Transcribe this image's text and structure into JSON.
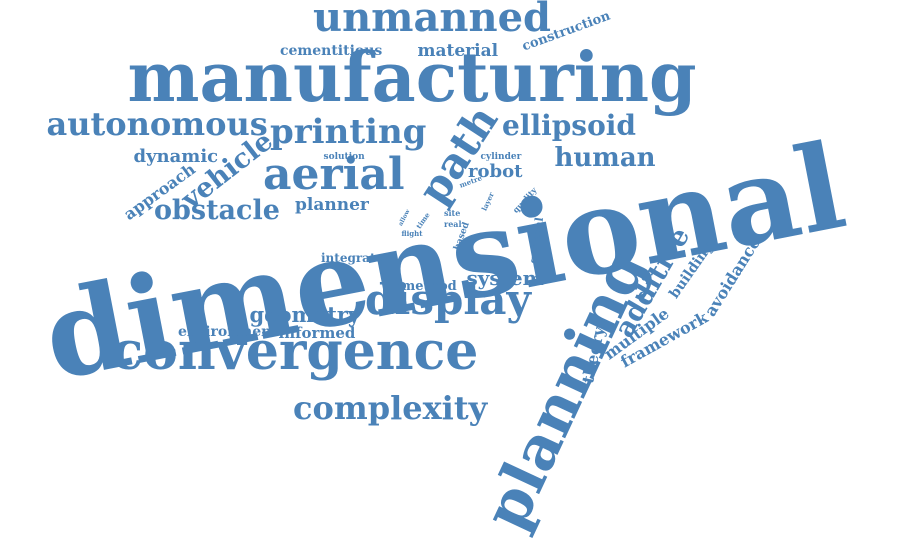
{
  "color": "#4a82b8",
  "words": [
    {
      "text": "dimensional",
      "name": "word-dimensional"
    },
    {
      "text": "manufacturing",
      "name": "word-manufacturing"
    },
    {
      "text": "planning",
      "name": "word-planning"
    },
    {
      "text": "convergence",
      "name": "word-convergence"
    },
    {
      "text": "unmanned",
      "name": "word-unmanned"
    },
    {
      "text": "display",
      "name": "word-display"
    },
    {
      "text": "aerial",
      "name": "word-aerial"
    },
    {
      "text": "complexity",
      "name": "word-complexity"
    },
    {
      "text": "path",
      "name": "word-path"
    },
    {
      "text": "printing",
      "name": "word-printing"
    },
    {
      "text": "autonomous",
      "name": "word-autonomous"
    },
    {
      "text": "ellipsoid",
      "name": "word-ellipsoid"
    },
    {
      "text": "human",
      "name": "word-human"
    },
    {
      "text": "obstacle",
      "name": "word-obstacle"
    },
    {
      "text": "vehicle",
      "name": "word-vehicle"
    },
    {
      "text": "additive",
      "name": "word-additive"
    },
    {
      "text": "geometry",
      "name": "word-geometry"
    },
    {
      "text": "system",
      "name": "word-system"
    },
    {
      "text": "dynamic",
      "name": "word-dynamic"
    },
    {
      "text": "approach",
      "name": "word-approach"
    },
    {
      "text": "robot",
      "name": "word-robot"
    },
    {
      "text": "planner",
      "name": "word-planner"
    },
    {
      "text": "material",
      "name": "word-material"
    },
    {
      "text": "cementitious",
      "name": "word-cementitious"
    },
    {
      "text": "construction",
      "name": "word-construction"
    },
    {
      "text": "framework",
      "name": "word-framework"
    },
    {
      "text": "multiple",
      "name": "word-multiple"
    },
    {
      "text": "theory",
      "name": "word-theory"
    },
    {
      "text": "avoidance",
      "name": "word-avoidance"
    },
    {
      "text": "building",
      "name": "word-building"
    },
    {
      "text": "environment",
      "name": "word-environment"
    },
    {
      "text": "informed",
      "name": "word-informed"
    },
    {
      "text": "method",
      "name": "word-method"
    },
    {
      "text": "integrate",
      "name": "word-integrate"
    },
    {
      "text": "general",
      "name": "word-general"
    },
    {
      "text": "based",
      "name": "word-based"
    },
    {
      "text": "solution",
      "name": "word-solution"
    },
    {
      "text": "cylinder",
      "name": "word-cylinder"
    },
    {
      "text": "quality",
      "name": "word-quality"
    },
    {
      "text": "metre",
      "name": "word-metre"
    },
    {
      "text": "layer",
      "name": "word-layer"
    },
    {
      "text": "real",
      "name": "word-real"
    },
    {
      "text": "site",
      "name": "word-site"
    },
    {
      "text": "time",
      "name": "word-time"
    },
    {
      "text": "flight",
      "name": "word-flight"
    },
    {
      "text": "allow",
      "name": "word-allow"
    }
  ]
}
